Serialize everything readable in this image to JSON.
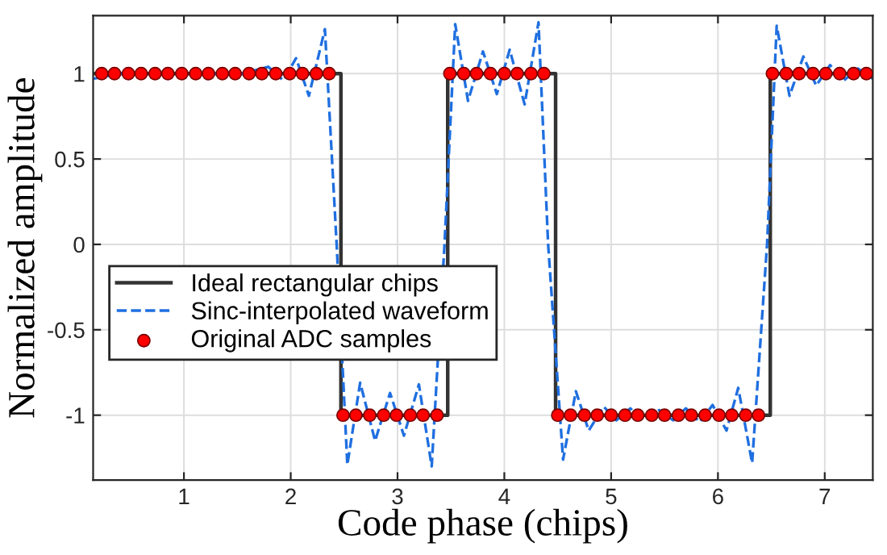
{
  "chart_data": {
    "type": "line",
    "xlabel": "Code phase (chips)",
    "ylabel": "Normalized amplitude",
    "xlim": [
      0.15,
      7.45
    ],
    "ylim": [
      -1.38,
      1.34
    ],
    "xticks": [
      1,
      2,
      3,
      4,
      5,
      6,
      7
    ],
    "yticks": [
      -1,
      -0.5,
      0,
      0.5,
      1
    ],
    "grid": true,
    "legend": "center left",
    "series": [
      {
        "name": "Ideal rectangular chips",
        "color": "#333333",
        "line_style": "solid",
        "marker": "none",
        "x": [
          0.15,
          2.47,
          2.47,
          3.47,
          3.47,
          4.48,
          4.48,
          6.49,
          6.49,
          7.45
        ],
        "values": [
          1,
          1,
          -1,
          -1,
          1,
          1,
          -1,
          -1,
          1,
          1
        ]
      },
      {
        "name": "Sinc-interpolated waveform",
        "color": "#1f6fe0",
        "line_style": "dashed",
        "marker": "none",
        "x": [
          0.15,
          0.4,
          1.3,
          1.55,
          1.79,
          1.93,
          2.05,
          2.17,
          2.32,
          2.43,
          2.53,
          2.65,
          2.79,
          2.93,
          3.06,
          3.2,
          3.32,
          3.44,
          3.54,
          3.66,
          3.8,
          3.93,
          4.05,
          4.19,
          4.32,
          4.41,
          4.55,
          4.67,
          4.79,
          4.93,
          5.05,
          5.18,
          5.3,
          5.45,
          5.58,
          5.7,
          5.83,
          5.95,
          6.08,
          6.19,
          6.32,
          6.46,
          6.55,
          6.67,
          6.8,
          6.92,
          7.05,
          7.18,
          7.31,
          7.45
        ],
        "values": [
          0.97,
          1.0,
          1.0,
          1.0,
          1.04,
          0.96,
          1.09,
          0.87,
          1.26,
          0,
          -1.29,
          -0.81,
          -1.15,
          -0.87,
          -1.12,
          -0.82,
          -1.3,
          0,
          1.29,
          0.84,
          1.13,
          0.88,
          1.14,
          0.82,
          1.3,
          0,
          -1.26,
          -0.86,
          -1.09,
          -0.95,
          -1.03,
          -0.96,
          -1.03,
          -0.97,
          -1.03,
          -0.96,
          -1.04,
          -0.94,
          -1.09,
          -0.84,
          -1.28,
          0,
          1.28,
          0.87,
          1.1,
          0.93,
          1.05,
          0.96,
          1.03,
          0.97
        ]
      },
      {
        "name": "Original ADC samples",
        "type": "scatter",
        "color": "#ff0000",
        "marker": "circle",
        "x": [
          0.23,
          0.35,
          0.48,
          0.6,
          0.73,
          0.85,
          0.98,
          1.11,
          1.23,
          1.36,
          1.48,
          1.61,
          1.73,
          1.86,
          1.99,
          2.11,
          2.24,
          2.36,
          2.49,
          2.61,
          2.74,
          2.87,
          2.99,
          3.12,
          3.24,
          3.37,
          3.49,
          3.62,
          3.74,
          3.87,
          4.0,
          4.12,
          4.25,
          4.37,
          4.5,
          4.62,
          4.75,
          4.87,
          5.0,
          5.13,
          5.25,
          5.38,
          5.5,
          5.63,
          5.75,
          5.88,
          6.01,
          6.13,
          6.26,
          6.38,
          6.51,
          6.64,
          6.76,
          6.89,
          7.01,
          7.14,
          7.27,
          7.39
        ],
        "values": [
          1,
          1,
          1,
          1,
          1,
          1,
          1,
          1,
          1,
          1,
          1,
          1,
          1,
          1,
          1,
          1,
          1,
          1,
          -1,
          -1,
          -1,
          -1,
          -1,
          -1,
          -1,
          -1,
          1,
          1,
          1,
          1,
          1,
          1,
          1,
          1,
          -1,
          -1,
          -1,
          -1,
          -1,
          -1,
          -1,
          -1,
          -1,
          -1,
          -1,
          -1,
          -1,
          -1,
          -1,
          -1,
          1,
          1,
          1,
          1,
          1,
          1,
          1,
          1
        ]
      }
    ]
  }
}
